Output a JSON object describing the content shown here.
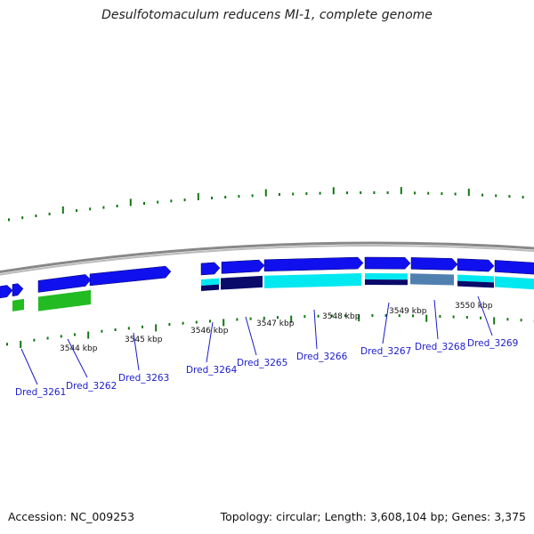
{
  "title": "Desulfotomaculum reducens MI-1, complete genome",
  "footer": {
    "accession": "Accession: NC_009253",
    "summary": "Topology: circular; Length: 3,608,104 bp; Genes: 3,375"
  },
  "colors": {
    "forward_gene": "#1010ee",
    "cds_blue": "#0a0aa0",
    "cds_cyan": "#00e8f0",
    "cds_navy": "#0a0a6a",
    "cds_steel": "#5080b0",
    "cds_green": "#22bb22",
    "tick_green": "#117711",
    "backbone": "#888888",
    "label_blue": "#1a1acc"
  },
  "scale_ticks": [
    {
      "label": "3544 kbp"
    },
    {
      "label": "3545 kbp"
    },
    {
      "label": "3546 kbp"
    },
    {
      "label": "3547 kbp"
    },
    {
      "label": "3548 kbp"
    },
    {
      "label": "3549 kbp"
    },
    {
      "label": "3550 kbp"
    }
  ],
  "genes": [
    {
      "label": "Dred_3261"
    },
    {
      "label": "Dred_3262"
    },
    {
      "label": "Dred_3263"
    },
    {
      "label": "Dred_3264"
    },
    {
      "label": "Dred_3265"
    },
    {
      "label": "Dred_3266"
    },
    {
      "label": "Dred_3267"
    },
    {
      "label": "Dred_3268"
    },
    {
      "label": "Dred_3269"
    }
  ]
}
